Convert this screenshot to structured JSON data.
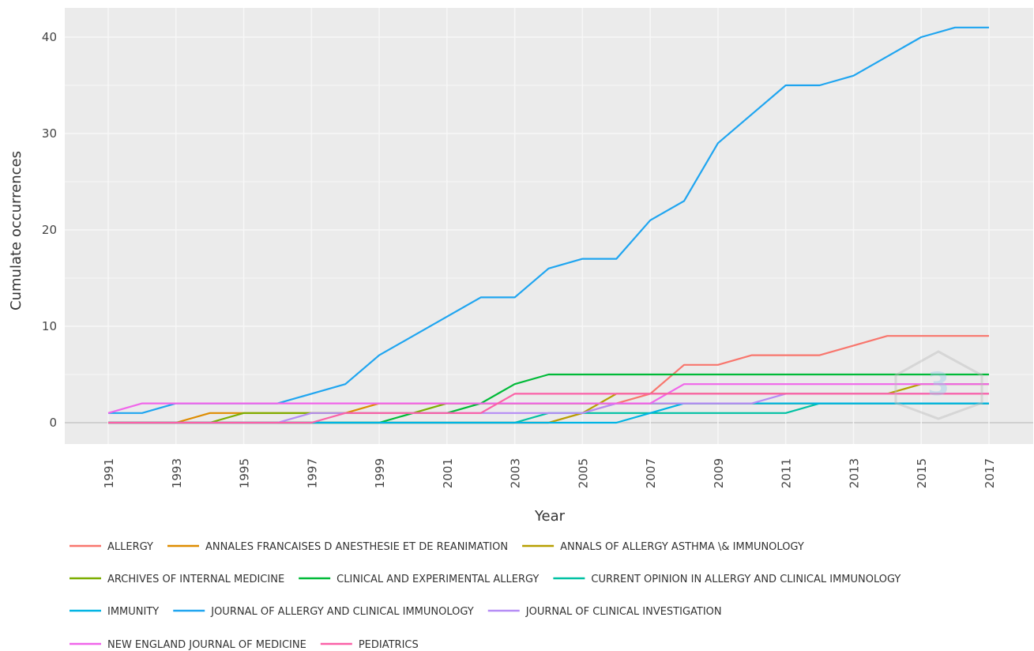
{
  "chart_data": {
    "type": "line",
    "title": "",
    "xlabel": "Year",
    "ylabel": "Cumulate occurrences",
    "x": [
      1991,
      1992,
      1993,
      1994,
      1995,
      1996,
      1997,
      1998,
      1999,
      2000,
      2001,
      2002,
      2003,
      2004,
      2005,
      2006,
      2007,
      2008,
      2009,
      2010,
      2011,
      2012,
      2013,
      2014,
      2015,
      2016,
      2017
    ],
    "x_ticks": [
      "1991",
      "1993",
      "1995",
      "1997",
      "1999",
      "2001",
      "2003",
      "2005",
      "2007",
      "2009",
      "2011",
      "2013",
      "2015",
      "2017"
    ],
    "y_ticks": [
      "0",
      "10",
      "20",
      "30",
      "40"
    ],
    "ylim": [
      -2,
      43
    ],
    "grid": true,
    "legend_position": "bottom",
    "series": [
      {
        "name": "ALLERGY",
        "color": "#F8766D",
        "values": [
          0,
          0,
          0,
          0,
          0,
          0,
          0,
          0,
          0,
          0,
          0,
          0,
          0,
          0,
          1,
          2,
          3,
          6,
          6,
          7,
          7,
          7,
          8,
          9,
          9,
          9,
          9
        ]
      },
      {
        "name": "ANNALES FRANCAISES D ANESTHESIE ET DE REANIMATION",
        "color": "#DE8C00",
        "values": [
          0,
          0,
          0,
          1,
          1,
          1,
          1,
          1,
          2,
          2,
          2,
          2,
          2,
          2,
          2,
          2,
          2,
          2,
          2,
          2,
          2,
          2,
          2,
          2,
          2,
          2,
          2
        ]
      },
      {
        "name": "ANNALS OF ALLERGY ASTHMA \\& IMMUNOLOGY",
        "color": "#B79F00",
        "values": [
          0,
          0,
          0,
          0,
          0,
          0,
          0,
          0,
          0,
          0,
          0,
          0,
          0,
          0,
          1,
          3,
          3,
          3,
          3,
          3,
          3,
          3,
          3,
          3,
          4,
          4,
          4
        ]
      },
      {
        "name": "ARCHIVES OF INTERNAL MEDICINE",
        "color": "#7CAE00",
        "values": [
          0,
          0,
          0,
          0,
          1,
          1,
          1,
          1,
          1,
          1,
          2,
          2,
          2,
          2,
          2,
          2,
          2,
          2,
          2,
          2,
          2,
          2,
          2,
          2,
          2,
          2,
          2
        ]
      },
      {
        "name": "CLINICAL AND EXPERIMENTAL ALLERGY",
        "color": "#00BA38",
        "values": [
          0,
          0,
          0,
          0,
          0,
          0,
          0,
          0,
          0,
          1,
          1,
          2,
          4,
          5,
          5,
          5,
          5,
          5,
          5,
          5,
          5,
          5,
          5,
          5,
          5,
          5,
          5
        ]
      },
      {
        "name": "CURRENT OPINION IN ALLERGY AND CLINICAL IMMUNOLOGY",
        "color": "#00C1A3",
        "values": [
          0,
          0,
          0,
          0,
          0,
          0,
          0,
          0,
          0,
          0,
          0,
          0,
          0,
          1,
          1,
          1,
          1,
          1,
          1,
          1,
          1,
          2,
          2,
          2,
          2,
          2,
          2
        ]
      },
      {
        "name": "IMMUNITY",
        "color": "#00B4E4",
        "values": [
          0,
          0,
          0,
          0,
          0,
          0,
          0,
          0,
          0,
          0,
          0,
          0,
          0,
          0,
          0,
          0,
          1,
          2,
          2,
          2,
          2,
          2,
          2,
          2,
          2,
          2,
          2
        ]
      },
      {
        "name": "JOURNAL OF ALLERGY AND CLINICAL IMMUNOLOGY",
        "color": "#1FA5F0",
        "values": [
          1,
          1,
          2,
          2,
          2,
          2,
          3,
          4,
          7,
          9,
          11,
          13,
          13,
          16,
          17,
          17,
          21,
          23,
          29,
          32,
          35,
          35,
          36,
          38,
          40,
          41,
          41
        ]
      },
      {
        "name": "JOURNAL OF CLINICAL INVESTIGATION",
        "color": "#B58CF5",
        "values": [
          0,
          0,
          0,
          0,
          0,
          0,
          1,
          1,
          1,
          1,
          1,
          1,
          1,
          1,
          1,
          2,
          2,
          2,
          2,
          2,
          3,
          3,
          3,
          3,
          3,
          3,
          3
        ]
      },
      {
        "name": "NEW ENGLAND JOURNAL OF MEDICINE",
        "color": "#F066EA",
        "values": [
          1,
          2,
          2,
          2,
          2,
          2,
          2,
          2,
          2,
          2,
          2,
          2,
          2,
          2,
          2,
          2,
          2,
          4,
          4,
          4,
          4,
          4,
          4,
          4,
          4,
          4,
          4
        ]
      },
      {
        "name": "PEDIATRICS",
        "color": "#FB61A7",
        "values": [
          0,
          0,
          0,
          0,
          0,
          0,
          0,
          1,
          1,
          1,
          1,
          1,
          3,
          3,
          3,
          3,
          3,
          3,
          3,
          3,
          3,
          3,
          3,
          3,
          3,
          3,
          3
        ]
      }
    ]
  },
  "colors": {
    "panel_background": "#EBEBEB",
    "grid": "#F7F7F7",
    "zero_line": "#D0D0D0"
  }
}
